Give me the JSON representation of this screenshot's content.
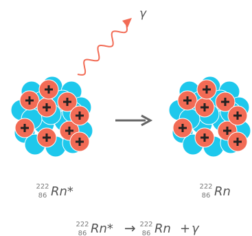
{
  "gamma_label": "γ",
  "before": {
    "mass": "222",
    "atomic": "86",
    "symbol": "Rn*"
  },
  "after": {
    "mass": "222",
    "atomic": "86",
    "symbol": "Rn"
  },
  "equation": {
    "lhs": {
      "mass": "222",
      "atomic": "86",
      "symbol": "Rn*"
    },
    "arrow": "→",
    "rhs": {
      "mass": "222",
      "atomic": "86",
      "symbol": "Rn"
    },
    "plus": "+",
    "product": "γ"
  }
}
